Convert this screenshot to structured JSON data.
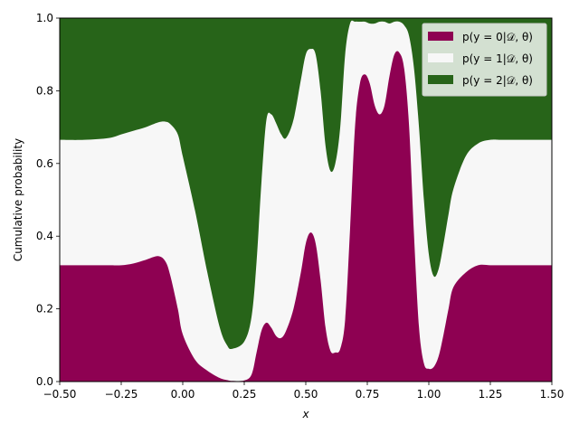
{
  "chart_data": {
    "type": "area",
    "title": "",
    "xlabel": "x",
    "ylabel": "Cumulative probability",
    "xlim": [
      -0.5,
      1.5
    ],
    "ylim": [
      0,
      1
    ],
    "xticks": [
      "−0.50",
      "−0.25",
      "0.00",
      "0.25",
      "0.50",
      "0.75",
      "1.00",
      "1.25",
      "1.50"
    ],
    "yticks": [
      "0.0",
      "0.2",
      "0.4",
      "0.6",
      "0.8",
      "1.0"
    ],
    "grid": false,
    "legend_position": "top-right",
    "x": [
      -0.5,
      -0.4,
      -0.3,
      -0.25,
      -0.2,
      -0.15,
      -0.1,
      -0.07,
      -0.05,
      -0.02,
      0.0,
      0.05,
      0.1,
      0.15,
      0.18,
      0.2,
      0.25,
      0.28,
      0.3,
      0.32,
      0.34,
      0.36,
      0.38,
      0.4,
      0.42,
      0.45,
      0.48,
      0.5,
      0.52,
      0.54,
      0.56,
      0.58,
      0.6,
      0.62,
      0.64,
      0.66,
      0.68,
      0.7,
      0.72,
      0.74,
      0.76,
      0.78,
      0.8,
      0.82,
      0.84,
      0.86,
      0.88,
      0.9,
      0.92,
      0.94,
      0.96,
      0.98,
      1.0,
      1.02,
      1.04,
      1.06,
      1.08,
      1.1,
      1.15,
      1.2,
      1.25,
      1.3,
      1.4,
      1.5
    ],
    "series": [
      {
        "name": "p(y=0|D,θ)",
        "color": "#8e0152",
        "lower": [
          0.32,
          0.32,
          0.32,
          0.32,
          0.325,
          0.335,
          0.345,
          0.33,
          0.29,
          0.2,
          0.13,
          0.06,
          0.03,
          0.01,
          0.004,
          0.002,
          0.003,
          0.02,
          0.08,
          0.14,
          0.162,
          0.148,
          0.125,
          0.12,
          0.14,
          0.2,
          0.3,
          0.38,
          0.41,
          0.38,
          0.28,
          0.15,
          0.085,
          0.08,
          0.09,
          0.17,
          0.42,
          0.7,
          0.82,
          0.845,
          0.82,
          0.76,
          0.735,
          0.76,
          0.84,
          0.9,
          0.905,
          0.86,
          0.7,
          0.4,
          0.15,
          0.05,
          0.035,
          0.04,
          0.07,
          0.13,
          0.2,
          0.26,
          0.3,
          0.32,
          0.32,
          0.32,
          0.32,
          0.32
        ],
        "upper_index": 0
      },
      {
        "name": "p(y=1|D,θ)",
        "color": "#f7f7f7"
      },
      {
        "name": "p(y=2|D,θ)",
        "color": "#276419"
      }
    ],
    "cum_upper": [
      0.665,
      0.665,
      0.67,
      0.68,
      0.69,
      0.7,
      0.713,
      0.715,
      0.708,
      0.68,
      0.62,
      0.47,
      0.3,
      0.15,
      0.1,
      0.09,
      0.11,
      0.18,
      0.33,
      0.55,
      0.72,
      0.735,
      0.71,
      0.68,
      0.67,
      0.72,
      0.83,
      0.9,
      0.915,
      0.9,
      0.8,
      0.65,
      0.58,
      0.6,
      0.7,
      0.9,
      0.985,
      0.99,
      0.99,
      0.99,
      0.985,
      0.985,
      0.99,
      0.99,
      0.985,
      0.99,
      0.99,
      0.98,
      0.95,
      0.86,
      0.7,
      0.5,
      0.35,
      0.29,
      0.31,
      0.38,
      0.46,
      0.53,
      0.62,
      0.655,
      0.665,
      0.665,
      0.665,
      0.665
    ]
  },
  "legend": {
    "entries": [
      {
        "label": "p(y = 0|𝒟, θ)",
        "color": "#8e0152"
      },
      {
        "label": "p(y = 1|𝒟, θ)",
        "color": "#f7f7f7"
      },
      {
        "label": "p(y = 2|𝒟, θ)",
        "color": "#276419"
      }
    ]
  }
}
